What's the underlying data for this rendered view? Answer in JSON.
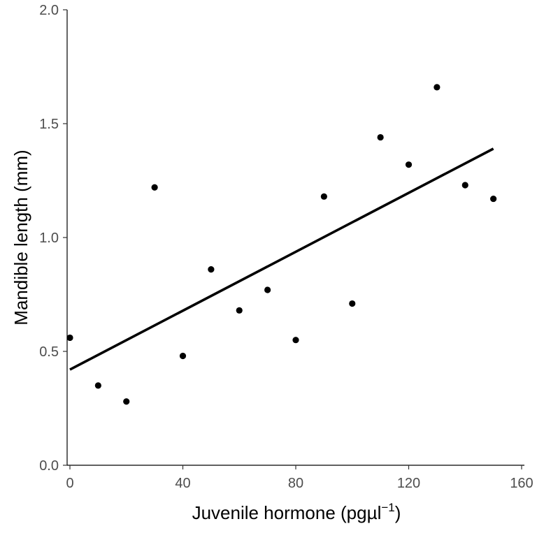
{
  "chart_data": {
    "type": "scatter",
    "xlabel": "Juvenile hormone (pgµl",
    "xlabel_superscript": "−1",
    "xlabel_suffix": ")",
    "ylabel": "Mandible length (mm)",
    "xlim": [
      0,
      160
    ],
    "ylim": [
      0,
      2
    ],
    "x_ticks": [
      0,
      40,
      80,
      120,
      160
    ],
    "x_tick_labels": [
      "0",
      "40",
      "80",
      "120",
      "160"
    ],
    "y_ticks": [
      0,
      0.5,
      1,
      1.5,
      2
    ],
    "y_tick_labels": [
      "0.0",
      "0.5",
      "1.0",
      "1.5",
      "2.0"
    ],
    "grid": false,
    "series": [
      {
        "x": [
          0,
          10,
          20,
          30,
          40,
          50,
          60,
          70,
          80,
          90,
          100,
          110,
          120,
          130,
          140,
          150
        ],
        "y": [
          0.56,
          0.35,
          0.28,
          1.22,
          0.48,
          0.86,
          0.68,
          0.77,
          0.55,
          1.18,
          0.71,
          1.44,
          1.32,
          1.66,
          1.23,
          1.17
        ]
      }
    ],
    "fit_line": {
      "x": [
        0,
        150
      ],
      "y": [
        0.42,
        1.39
      ]
    },
    "colors": {
      "points": "#000000",
      "line": "#000000"
    }
  }
}
